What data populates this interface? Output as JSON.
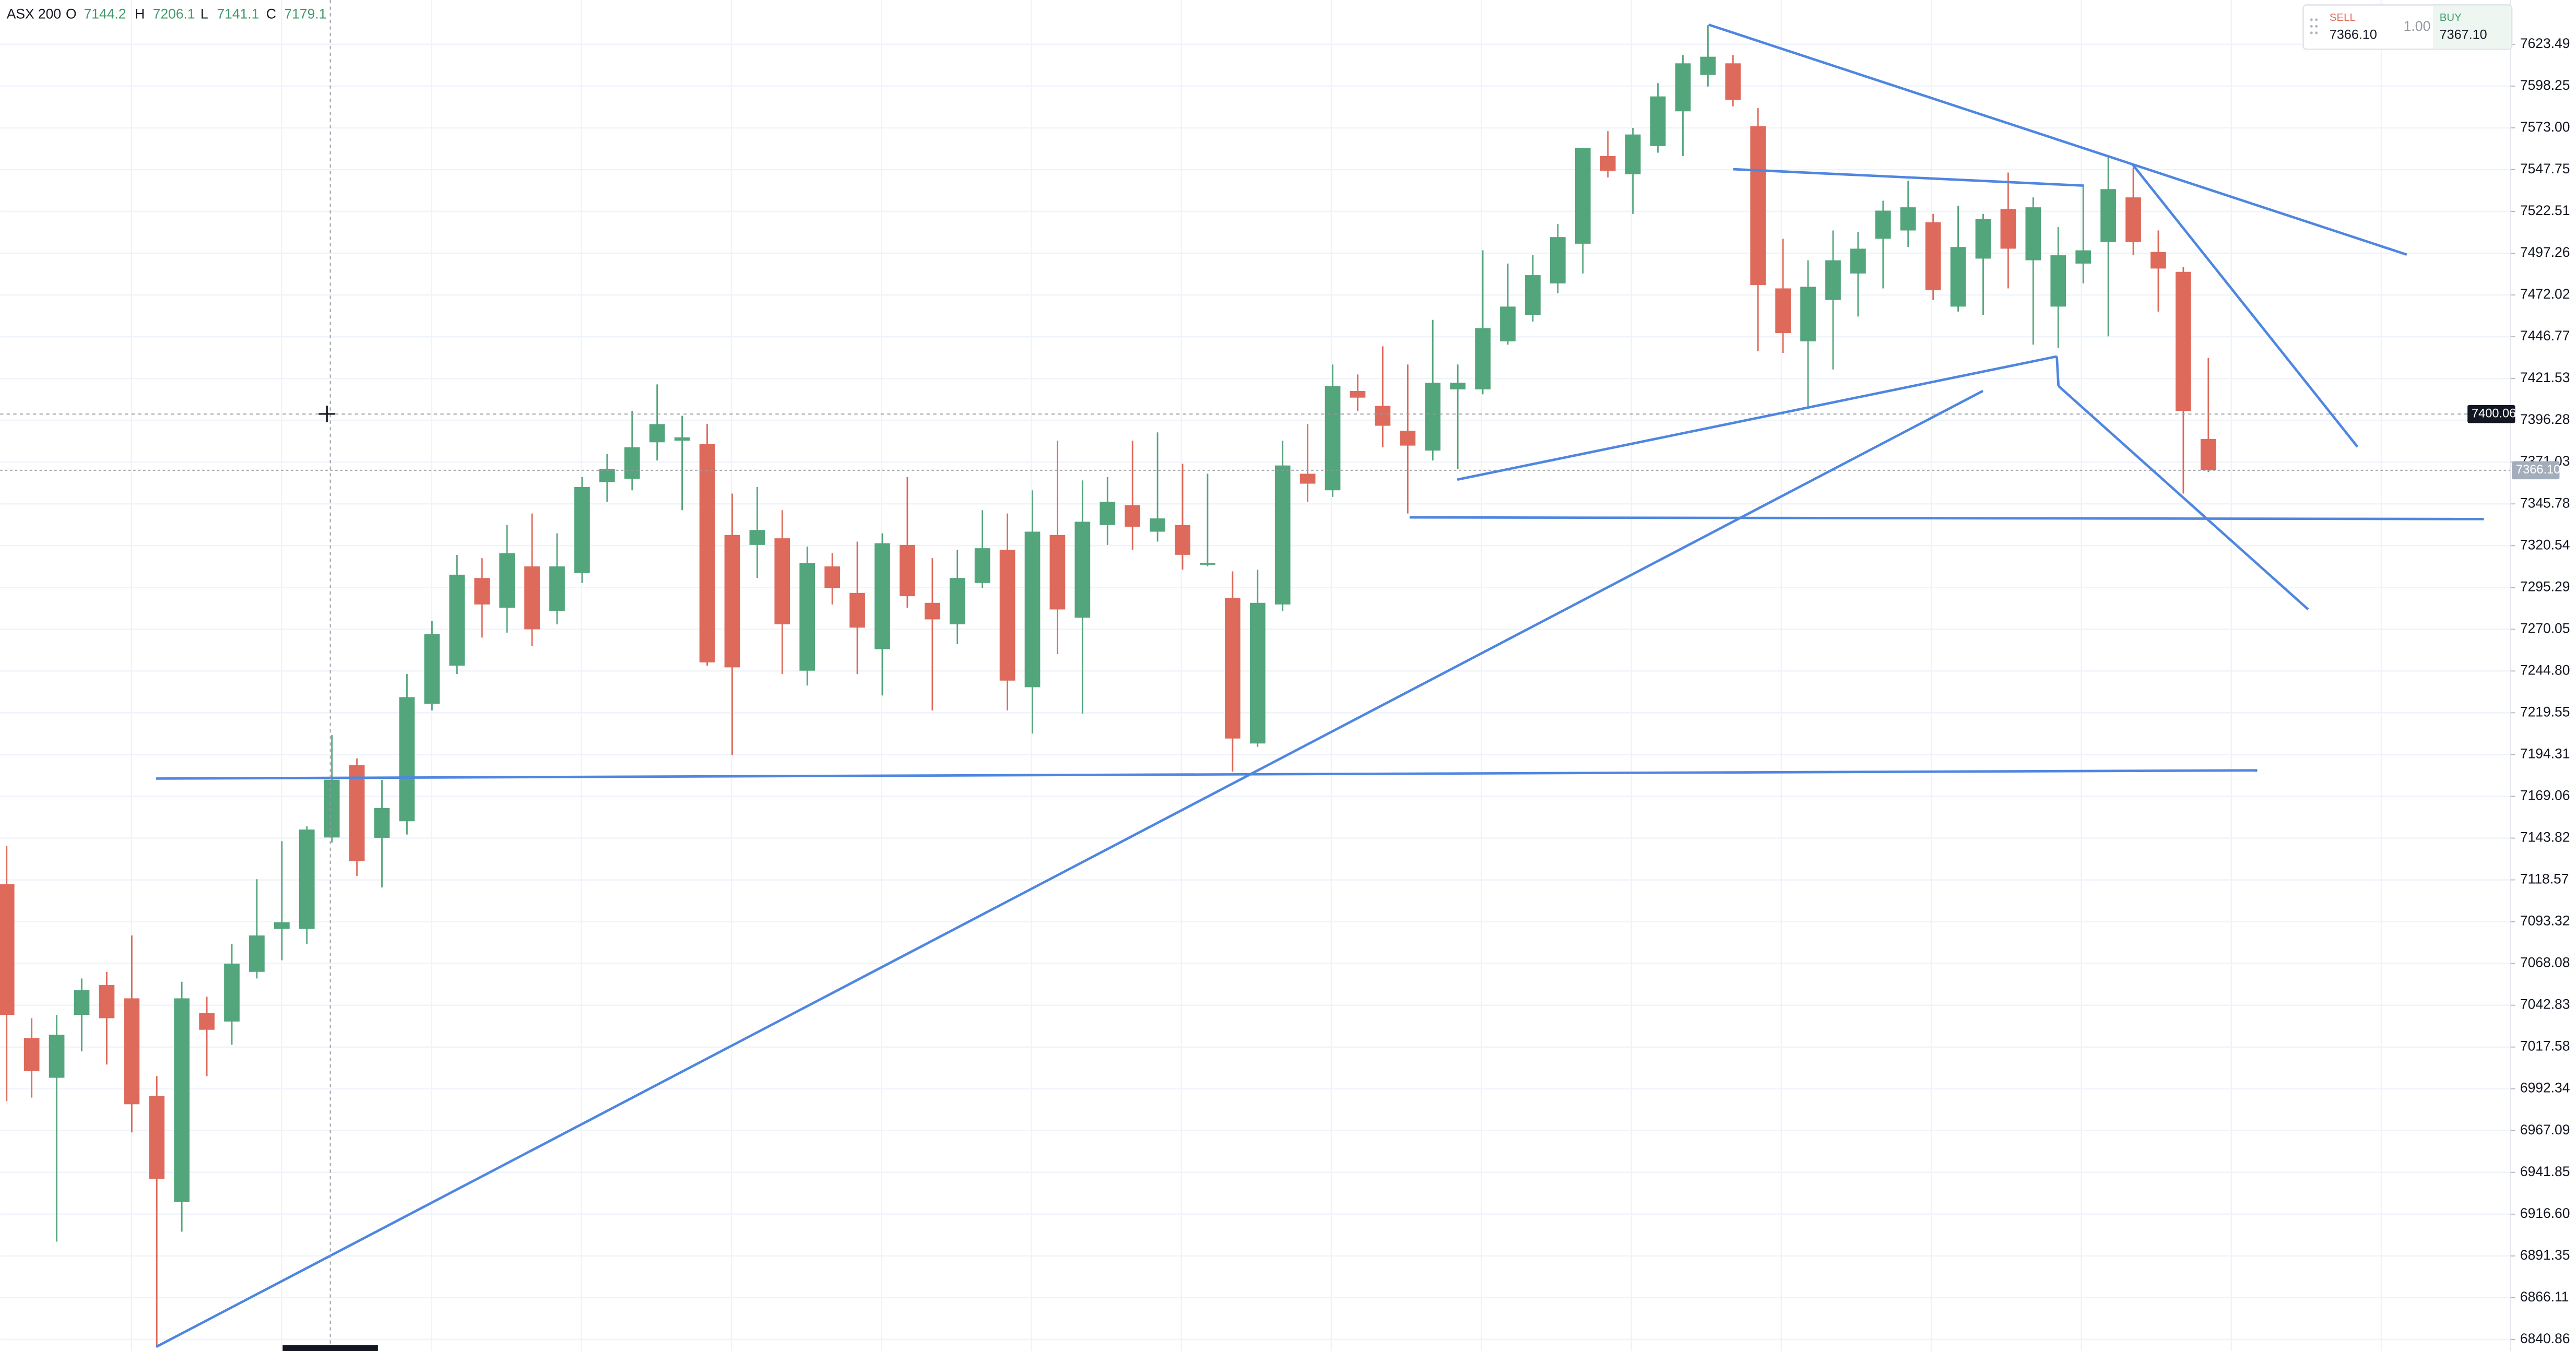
{
  "header": {
    "symbol": "ASX 200",
    "labels": [
      "O",
      "H",
      "L",
      "C"
    ]
  },
  "chart_data": {
    "type": "candlestick",
    "open": [
      7116,
      7023,
      6999,
      7037,
      7055,
      7047,
      6988,
      6924,
      7038,
      7033,
      7063,
      7089,
      7089,
      7144.2,
      7188,
      7144,
      7154,
      7225,
      7248,
      7301,
      7283,
      7308,
      7281,
      7304,
      7359,
      7361,
      7383,
      7384,
      7382,
      7327,
      7321,
      7325,
      7245,
      7308,
      7292,
      7258,
      7321,
      7286,
      7273,
      7298,
      7318,
      7235,
      7327,
      7277,
      7333,
      7345,
      7329,
      7333,
      7310,
      7289,
      7201,
      7285,
      7364,
      7354,
      7414,
      7405,
      7390,
      7378,
      7415,
      7415,
      7444,
      7460,
      7479,
      7503,
      7556,
      7545,
      7562,
      7583,
      7605,
      7612,
      7574,
      7476,
      7444,
      7469,
      7485,
      7506,
      7511,
      7516,
      7465,
      7494,
      7524,
      7493,
      7465,
      7491,
      7504,
      7531,
      7498,
      7486,
      7385
    ],
    "high": [
      7139,
      7035,
      7037,
      7059,
      7063,
      7085,
      7000,
      7057,
      7048,
      7080,
      7119,
      7142,
      7151,
      7206.1,
      7192,
      7179,
      7243,
      7275,
      7315,
      7313,
      7333,
      7340,
      7328,
      7362,
      7376,
      7402,
      7418,
      7399,
      7394,
      7352,
      7356,
      7342,
      7320,
      7316,
      7323,
      7328,
      7362,
      7313,
      7318,
      7342,
      7340,
      7354,
      7384,
      7360,
      7362,
      7384,
      7389,
      7370,
      7364,
      7305,
      7306,
      7384,
      7394,
      7430,
      7424,
      7441,
      7430,
      7457,
      7430,
      7499,
      7491,
      7496,
      7515,
      7561,
      7571,
      7573,
      7600,
      7617,
      7635,
      7617,
      7585,
      7506,
      7493,
      7511,
      7510,
      7529,
      7541,
      7521,
      7526,
      7521,
      7546,
      7531,
      7513,
      7539,
      7556,
      7549,
      7511,
      7489,
      7434
    ],
    "low": [
      6985,
      6987,
      6900,
      7015,
      7007,
      6966,
      6837,
      6906,
      7000,
      7019,
      7059,
      7070,
      7080,
      7141.1,
      7121,
      7114,
      7146,
      7221,
      7243,
      7265,
      7268,
      7260,
      7273,
      7298,
      7347,
      7354,
      7372,
      7342,
      7248,
      7194,
      7301,
      7243,
      7236,
      7285,
      7243,
      7230,
      7283,
      7221,
      7261,
      7295,
      7221,
      7207,
      7255,
      7219,
      7321,
      7318,
      7323,
      7306,
      7308,
      7184,
      7199,
      7281,
      7347,
      7350,
      7402,
      7380,
      7340,
      7372,
      7367,
      7412,
      7442,
      7456,
      7473,
      7485,
      7543,
      7521,
      7558,
      7556,
      7598,
      7586,
      7438,
      7437,
      7404,
      7427,
      7459,
      7476,
      7501,
      7469,
      7462,
      7460,
      7476,
      7442,
      7440,
      7479,
      7447,
      7496,
      7462,
      7352,
      7365
    ],
    "close": [
      7037,
      7003,
      7025,
      7052,
      7035,
      6983,
      6938,
      7047,
      7028,
      7068,
      7085,
      7093,
      7149,
      7179.1,
      7130,
      7162,
      7229,
      7267,
      7303,
      7285,
      7316,
      7270,
      7308,
      7356,
      7367,
      7380,
      7394,
      7386,
      7250,
      7247,
      7330,
      7273,
      7310,
      7295,
      7271,
      7322,
      7290,
      7276,
      7301,
      7319,
      7239,
      7329,
      7282,
      7335,
      7347,
      7332,
      7337,
      7315,
      7310,
      7204,
      7286,
      7369,
      7358,
      7417,
      7410,
      7393,
      7381,
      7419,
      7419,
      7452,
      7465,
      7484,
      7507,
      7561,
      7547,
      7569,
      7592,
      7612,
      7616,
      7590,
      7478,
      7449,
      7477,
      7493,
      7500,
      7523,
      7525,
      7475,
      7501,
      7518,
      7500,
      7525,
      7496,
      7499,
      7536,
      7504,
      7488,
      7402,
      7366.1
    ],
    "up_color": "#53a57b",
    "down_color": "#de6a5b",
    "ylim": [
      6833.9,
      7650.27
    ],
    "yticks": [
      7623.49,
      7598.25,
      {
        "value": 7573.0,
        "label": "7573.00"
      },
      7547.75,
      7522.51,
      7497.26,
      7472.02,
      7446.77,
      7421.53,
      7396.28,
      7371.03,
      7345.78,
      7320.54,
      7295.29,
      7270.05,
      {
        "value": 7244.8,
        "label": "7244.80"
      },
      7219.55,
      7194.31,
      7169.06,
      7143.82,
      7118.57,
      7093.32,
      7068.08,
      7042.83,
      7017.58,
      6992.34,
      6967.09,
      6941.85,
      {
        "value": 6916.6,
        "label": "6916.60"
      },
      6891.35,
      6866.11,
      6840.86
    ],
    "grid": true,
    "crosshair_price": 7400.06,
    "last_price_label": "7366.10"
  },
  "trade_panel": {
    "sell_label": "SELL",
    "sell_price": "7366.10",
    "quantity": "1.00",
    "buy_label": "BUY",
    "buy_price": "7367.10"
  }
}
